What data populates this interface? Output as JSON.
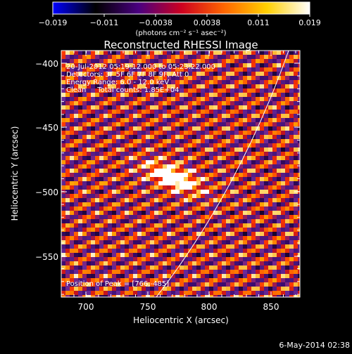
{
  "colorbar": {
    "ticks": [
      "−0.019",
      "−0.011",
      "−0.0038",
      "0.0038",
      "0.011",
      "0.019"
    ],
    "units": "(photons cm⁻² s⁻¹ asec⁻²)",
    "colormap": [
      "#0000ff",
      "#000000",
      "#4a0080",
      "#cc0020",
      "#ff6600",
      "#ffd000",
      "#ffffff"
    ]
  },
  "title": "Reconstructed RHESSI Image",
  "info": {
    "line1": "20-Jul-2012 05:19:12.000 to 05:23:22.000",
    "line2": "Detectors: 3F 5F 6F 7F 8F 9F, Att 0",
    "line3": "Energy Range: 6.0 - 12.0 keV",
    "line4": "Clean     Total counts: 1.85E+04"
  },
  "peak_label": "Position of Peak = [766,-485]",
  "axes": {
    "xlabel": "Heliocentric X (arcsec)",
    "ylabel": "Heliocentric Y (arcsec)",
    "xticks": [
      "700",
      "750",
      "800",
      "850"
    ],
    "yticks": [
      "−400",
      "−450",
      "−500",
      "−550"
    ]
  },
  "timestamp": "6-May-2014 02:38"
}
